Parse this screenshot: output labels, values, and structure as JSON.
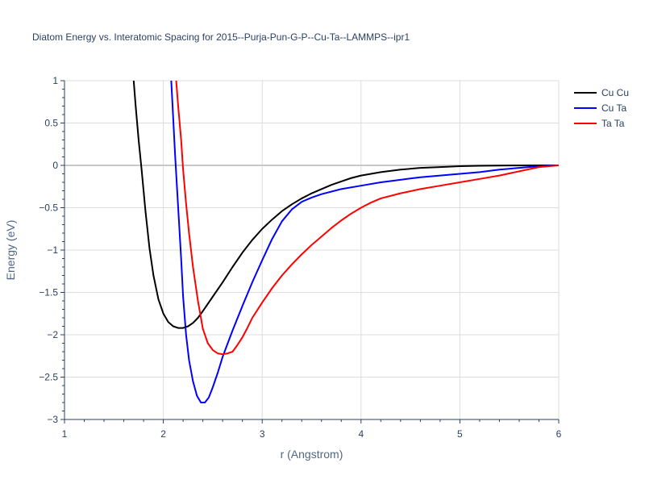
{
  "chart_data": {
    "type": "line",
    "title": "Diatom Energy vs. Interatomic Spacing for 2015--Purja-Pun-G-P--Cu-Ta--LAMMPS--ipr1",
    "xlabel": "r (Angstrom)",
    "ylabel": "Energy (eV)",
    "xlim": [
      1,
      6
    ],
    "ylim": [
      -3,
      1
    ],
    "xticks": [
      1,
      2,
      3,
      4,
      5,
      6
    ],
    "xtick_labels": [
      "1",
      "2",
      "3",
      "4",
      "5",
      "6"
    ],
    "yticks": [
      1,
      0.5,
      0,
      -0.5,
      -1,
      -1.5,
      -2,
      -2.5,
      -3
    ],
    "ytick_labels": [
      "1",
      "0.5",
      "0",
      "−0.5",
      "−1",
      "−1.5",
      "−2",
      "−2.5",
      "−3"
    ],
    "grid": true,
    "legend_position": "top-right",
    "series": [
      {
        "name": "Cu Cu",
        "color": "#000000",
        "x": [
          1.7,
          1.72,
          1.75,
          1.78,
          1.82,
          1.86,
          1.9,
          1.95,
          2.0,
          2.05,
          2.1,
          2.15,
          2.2,
          2.25,
          2.3,
          2.35,
          2.4,
          2.5,
          2.6,
          2.7,
          2.8,
          2.9,
          3.0,
          3.1,
          3.2,
          3.3,
          3.4,
          3.5,
          3.6,
          3.7,
          3.8,
          3.9,
          4.0,
          4.2,
          4.4,
          4.6,
          4.8,
          5.0,
          5.2,
          5.4,
          5.6,
          5.8,
          6.0
        ],
        "y": [
          1.0,
          0.7,
          0.3,
          -0.05,
          -0.55,
          -0.98,
          -1.3,
          -1.58,
          -1.75,
          -1.85,
          -1.9,
          -1.92,
          -1.92,
          -1.9,
          -1.86,
          -1.8,
          -1.72,
          -1.55,
          -1.38,
          -1.2,
          -1.03,
          -0.88,
          -0.75,
          -0.64,
          -0.54,
          -0.46,
          -0.39,
          -0.33,
          -0.28,
          -0.23,
          -0.19,
          -0.15,
          -0.12,
          -0.08,
          -0.05,
          -0.03,
          -0.02,
          -0.01,
          -0.005,
          -0.002,
          -0.001,
          0.0,
          0.0
        ]
      },
      {
        "name": "Cu Ta",
        "color": "#0000ff",
        "x": [
          2.08,
          2.1,
          2.12,
          2.15,
          2.18,
          2.2,
          2.23,
          2.26,
          2.3,
          2.34,
          2.38,
          2.42,
          2.46,
          2.5,
          2.55,
          2.6,
          2.7,
          2.8,
          2.9,
          3.0,
          3.1,
          3.2,
          3.3,
          3.4,
          3.5,
          3.6,
          3.8,
          4.0,
          4.2,
          4.4,
          4.6,
          4.8,
          5.0,
          5.2,
          5.4,
          5.6,
          5.8,
          6.0
        ],
        "y": [
          1.0,
          0.55,
          0.1,
          -0.5,
          -1.1,
          -1.55,
          -2.0,
          -2.3,
          -2.55,
          -2.72,
          -2.8,
          -2.8,
          -2.74,
          -2.62,
          -2.45,
          -2.26,
          -1.95,
          -1.66,
          -1.38,
          -1.12,
          -0.87,
          -0.66,
          -0.52,
          -0.43,
          -0.38,
          -0.34,
          -0.28,
          -0.24,
          -0.2,
          -0.17,
          -0.14,
          -0.12,
          -0.1,
          -0.08,
          -0.05,
          -0.03,
          -0.01,
          0.0
        ]
      },
      {
        "name": "Ta Ta",
        "color": "#ff0000",
        "x": [
          2.13,
          2.15,
          2.18,
          2.2,
          2.23,
          2.26,
          2.3,
          2.35,
          2.4,
          2.45,
          2.5,
          2.55,
          2.6,
          2.65,
          2.7,
          2.75,
          2.8,
          2.85,
          2.9,
          3.0,
          3.1,
          3.2,
          3.3,
          3.4,
          3.5,
          3.6,
          3.7,
          3.8,
          3.9,
          4.0,
          4.1,
          4.2,
          4.4,
          4.6,
          4.8,
          5.0,
          5.2,
          5.4,
          5.6,
          5.8,
          6.0
        ],
        "y": [
          1.0,
          0.7,
          0.3,
          -0.05,
          -0.45,
          -0.8,
          -1.2,
          -1.6,
          -1.93,
          -2.1,
          -2.18,
          -2.22,
          -2.23,
          -2.22,
          -2.2,
          -2.12,
          -2.03,
          -1.92,
          -1.8,
          -1.62,
          -1.45,
          -1.3,
          -1.17,
          -1.05,
          -0.94,
          -0.84,
          -0.74,
          -0.65,
          -0.57,
          -0.5,
          -0.44,
          -0.39,
          -0.33,
          -0.28,
          -0.24,
          -0.2,
          -0.16,
          -0.12,
          -0.07,
          -0.02,
          0.0
        ]
      }
    ]
  }
}
